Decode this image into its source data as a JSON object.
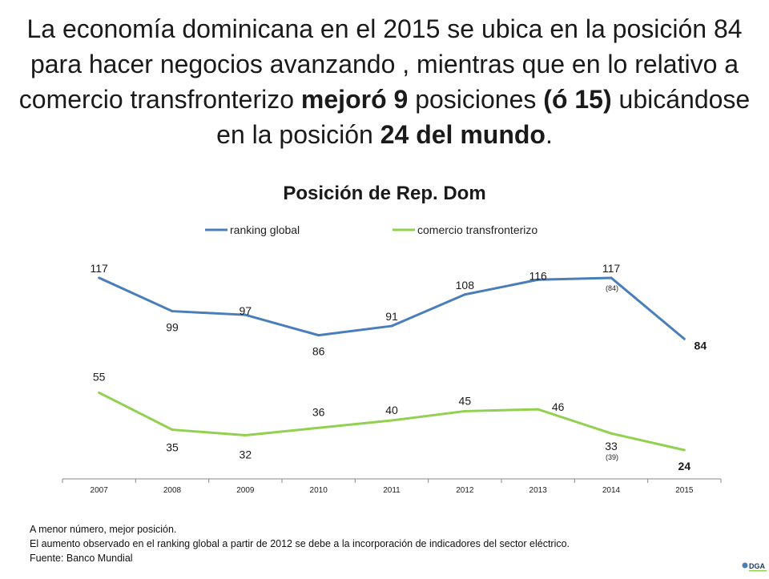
{
  "headline": {
    "p1": "La economía dominicana en el 2015 se ubica en la posición 84 para hacer negocios avanzando , mientras que en lo relativo a comercio transfronterizo ",
    "b1": "mejoró 9",
    "p2": " posiciones ",
    "b2": "(ó 15)",
    "p3": " ubicándose en la posición ",
    "b3": "24 del mundo",
    "p4": "."
  },
  "chart_data": {
    "type": "line",
    "title": "Posición de Rep. Dom",
    "categories": [
      "2007",
      "2008",
      "2009",
      "2010",
      "2011",
      "2012",
      "2013",
      "2014",
      "2015"
    ],
    "series": [
      {
        "name": "ranking global",
        "color": "#4a7ebb",
        "values": [
          117,
          99,
          97,
          86,
          91,
          108,
          116,
          117,
          84
        ],
        "labels": [
          "117",
          "99",
          "97",
          "86",
          "91",
          "108",
          "116",
          "117",
          "84"
        ],
        "annotation": {
          "index": 7,
          "text": "(84)"
        }
      },
      {
        "name": "comercio transfronterizo",
        "color": "#92d050",
        "values": [
          55,
          35,
          32,
          36,
          40,
          45,
          46,
          33,
          24
        ],
        "labels": [
          "55",
          "35",
          "32",
          "36",
          "40",
          "45",
          "46",
          "33",
          "24"
        ],
        "annotation": {
          "index": 7,
          "text": "(39)"
        }
      }
    ],
    "legend": "top",
    "xlabel": "",
    "ylabel": ""
  },
  "notes": {
    "line1": "A menor número, mejor posición.",
    "line2": "El aumento observado en el ranking global a partir de 2012 se debe a la incorporación de indicadores del sector eléctrico.",
    "line3": "Fuente: Banco Mundial"
  },
  "logo": {
    "text": "DGA"
  }
}
